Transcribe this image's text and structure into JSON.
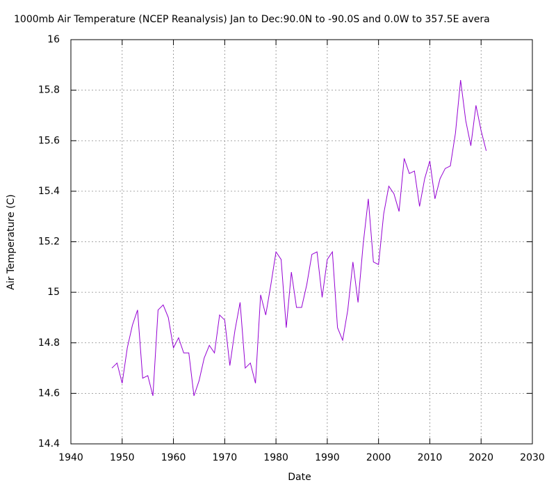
{
  "chart_data": {
    "type": "line",
    "title": "1000mb Air Temperature (NCEP Reanalysis) Jan to Dec:90.0N to -90.0S and 0.0W to 357.5E avera",
    "x_label": "Date",
    "y_label": "Air Temperature (C)",
    "x": [
      1948,
      1949,
      1950,
      1951,
      1952,
      1953,
      1954,
      1955,
      1956,
      1957,
      1958,
      1959,
      1960,
      1961,
      1962,
      1963,
      1964,
      1965,
      1966,
      1967,
      1968,
      1969,
      1970,
      1971,
      1972,
      1973,
      1974,
      1975,
      1976,
      1977,
      1978,
      1979,
      1980,
      1981,
      1982,
      1983,
      1984,
      1985,
      1986,
      1987,
      1988,
      1989,
      1990,
      1991,
      1992,
      1993,
      1994,
      1995,
      1996,
      1997,
      1998,
      1999,
      2000,
      2001,
      2002,
      2003,
      2004,
      2005,
      2006,
      2007,
      2008,
      2009,
      2010,
      2011,
      2012,
      2013,
      2014,
      2015,
      2016,
      2017,
      2018,
      2019,
      2020,
      2021
    ],
    "series": [
      {
        "name": "Air Temperature",
        "color": "#9400d3",
        "values": [
          14.7,
          14.72,
          14.64,
          14.78,
          14.87,
          14.93,
          14.66,
          14.67,
          14.59,
          14.93,
          14.95,
          14.9,
          14.78,
          14.82,
          14.76,
          14.76,
          14.59,
          14.65,
          14.74,
          14.79,
          14.76,
          14.91,
          14.89,
          14.71,
          14.85,
          14.96,
          14.7,
          14.72,
          14.64,
          14.99,
          14.91,
          15.03,
          15.16,
          15.13,
          14.86,
          15.08,
          14.94,
          14.94,
          15.03,
          15.15,
          15.16,
          14.98,
          15.13,
          15.16,
          14.86,
          14.81,
          14.93,
          15.12,
          14.96,
          15.19,
          15.37,
          15.12,
          15.11,
          15.31,
          15.42,
          15.39,
          15.32,
          15.53,
          15.47,
          15.48,
          15.34,
          15.45,
          15.52,
          15.37,
          15.45,
          15.49,
          15.5,
          15.63,
          15.84,
          15.68,
          15.58,
          15.74,
          15.64,
          15.56
        ]
      }
    ],
    "xlim": [
      1940,
      2030
    ],
    "xticks": [
      1940,
      1950,
      1960,
      1970,
      1980,
      1990,
      2000,
      2010,
      2020,
      2030
    ],
    "ylim": [
      14.4,
      16
    ],
    "yticks": [
      14.4,
      14.6,
      14.8,
      15,
      15.2,
      15.4,
      15.6,
      15.8,
      16
    ],
    "grid": true
  }
}
